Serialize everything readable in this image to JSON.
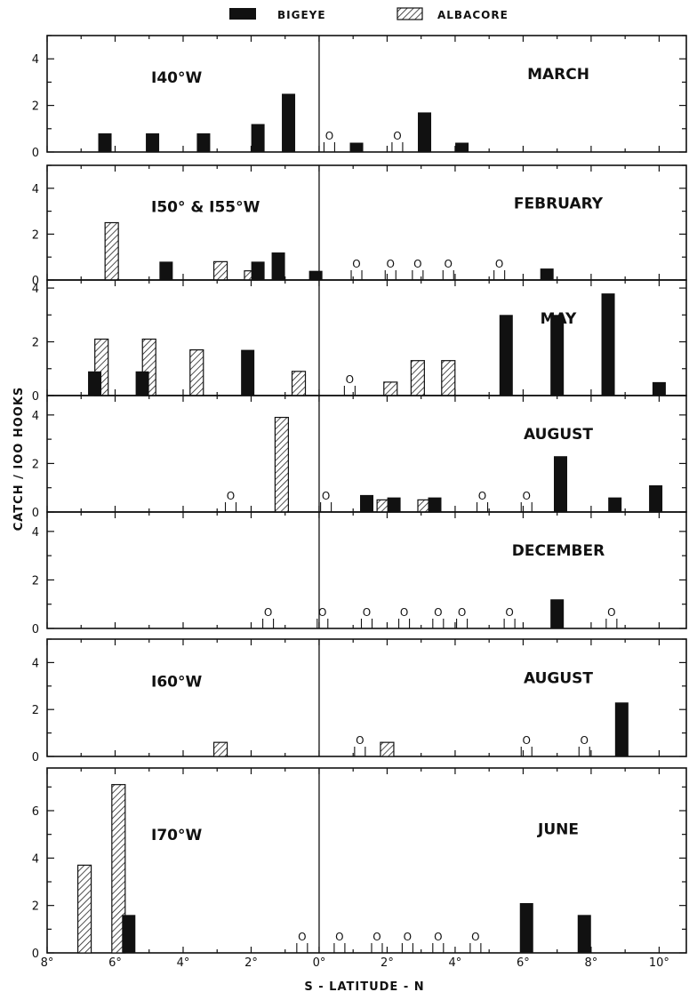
{
  "legend": [
    {
      "name": "BIGEYE",
      "style": "solid"
    },
    {
      "name": "ALBACORE",
      "style": "hatched"
    }
  ],
  "colors": {
    "bigeye": "#111111",
    "albacore_hatch": "#222222",
    "axes": "#111111"
  },
  "chart_data": {
    "type": "bar",
    "xlabel": "S - LATITUDE - N",
    "ylabel": "CATCH / IOO HOOKS",
    "xlim": [
      -8,
      10.8
    ],
    "x_ticks": [
      -8,
      -6,
      -4,
      -2,
      0,
      2,
      4,
      6,
      8,
      10
    ],
    "x_tick_labels": [
      "8°",
      "6°",
      "4°",
      "2°",
      "0°",
      "2°",
      "4°",
      "6°",
      "8°",
      "10°"
    ],
    "zero_catch_marker": "O",
    "panels": [
      {
        "longitude_label": "I40°W",
        "month_label": "MARCH",
        "ylim": [
          0,
          5
        ],
        "y_ticks": [
          0,
          2,
          4
        ],
        "y_tick_labels": [
          "0",
          "2",
          "4"
        ],
        "bigeye": [
          {
            "x": -6.3,
            "y": 0.8
          },
          {
            "x": -4.9,
            "y": 0.8
          },
          {
            "x": -3.4,
            "y": 0.8
          },
          {
            "x": -1.8,
            "y": 1.2
          },
          {
            "x": -0.9,
            "y": 2.5
          },
          {
            "x": 1.1,
            "y": 0.4
          },
          {
            "x": 3.1,
            "y": 1.7
          },
          {
            "x": 4.2,
            "y": 0.4
          }
        ],
        "albacore": [],
        "zero_catch": [
          {
            "x": 0.3
          },
          {
            "x": 2.3
          }
        ]
      },
      {
        "longitude_label": "I50° & I55°W",
        "month_label": "FEBRUARY",
        "ylim": [
          0,
          5
        ],
        "y_ticks": [
          0,
          2,
          4
        ],
        "y_tick_labels": [
          "0",
          "2",
          "4"
        ],
        "bigeye": [
          {
            "x": -4.5,
            "y": 0.8
          },
          {
            "x": -1.8,
            "y": 0.8
          },
          {
            "x": -1.2,
            "y": 1.2
          },
          {
            "x": -0.1,
            "y": 0.4
          },
          {
            "x": 6.7,
            "y": 0.5
          }
        ],
        "albacore": [
          {
            "x": -6.1,
            "y": 2.5
          },
          {
            "x": -2.9,
            "y": 0.8
          },
          {
            "x": -2.0,
            "y": 0.4
          }
        ],
        "zero_catch": [
          {
            "x": 1.1
          },
          {
            "x": 2.1
          },
          {
            "x": 2.9
          },
          {
            "x": 3.8
          },
          {
            "x": 5.3
          }
        ]
      },
      {
        "longitude_label": "",
        "month_label": "MAY",
        "ylim": [
          0,
          4.3
        ],
        "y_ticks": [
          0,
          2,
          4
        ],
        "y_tick_labels": [
          "0",
          "2",
          "4"
        ],
        "bigeye": [
          {
            "x": -6.6,
            "y": 0.9
          },
          {
            "x": -5.2,
            "y": 0.9
          },
          {
            "x": -2.1,
            "y": 1.7
          },
          {
            "x": 5.5,
            "y": 3.0
          },
          {
            "x": 7.0,
            "y": 3.0
          },
          {
            "x": 8.5,
            "y": 3.8
          },
          {
            "x": 10.0,
            "y": 0.5
          }
        ],
        "albacore": [
          {
            "x": -6.4,
            "y": 2.1
          },
          {
            "x": -5.0,
            "y": 2.1
          },
          {
            "x": -3.6,
            "y": 1.7
          },
          {
            "x": -0.6,
            "y": 0.9
          },
          {
            "x": 2.1,
            "y": 0.5
          },
          {
            "x": 2.9,
            "y": 1.3
          },
          {
            "x": 3.8,
            "y": 1.3
          }
        ],
        "zero_catch": [
          {
            "x": 0.9
          }
        ]
      },
      {
        "longitude_label": "",
        "month_label": "AUGUST",
        "ylim": [
          0,
          4.8
        ],
        "y_ticks": [
          0,
          2,
          4
        ],
        "y_tick_labels": [
          "0",
          "2",
          "4"
        ],
        "bigeye": [
          {
            "x": 1.4,
            "y": 0.7
          },
          {
            "x": 2.2,
            "y": 0.6
          },
          {
            "x": 3.4,
            "y": 0.6
          },
          {
            "x": 7.1,
            "y": 2.3
          },
          {
            "x": 8.7,
            "y": 0.6
          },
          {
            "x": 9.9,
            "y": 1.1
          }
        ],
        "albacore": [
          {
            "x": -1.1,
            "y": 3.9
          },
          {
            "x": 1.9,
            "y": 0.5
          },
          {
            "x": 3.1,
            "y": 0.5
          }
        ],
        "zero_catch": [
          {
            "x": -2.6
          },
          {
            "x": 0.2
          },
          {
            "x": 4.8
          },
          {
            "x": 6.1
          }
        ]
      },
      {
        "longitude_label": "",
        "month_label": "DECEMBER",
        "ylim": [
          0,
          4.8
        ],
        "y_ticks": [
          0,
          2,
          4
        ],
        "y_tick_labels": [
          "0",
          "2",
          "4"
        ],
        "bigeye": [
          {
            "x": 7.0,
            "y": 1.2
          }
        ],
        "albacore": [],
        "zero_catch": [
          {
            "x": -1.5
          },
          {
            "x": 0.1
          },
          {
            "x": 1.4
          },
          {
            "x": 2.5
          },
          {
            "x": 3.5
          },
          {
            "x": 4.2
          },
          {
            "x": 5.6
          },
          {
            "x": 8.6
          }
        ]
      },
      {
        "longitude_label": "I60°W",
        "month_label": "AUGUST",
        "ylim": [
          0,
          5
        ],
        "y_ticks": [
          0,
          2,
          4
        ],
        "y_tick_labels": [
          "0",
          "2",
          "4"
        ],
        "bigeye": [
          {
            "x": 8.9,
            "y": 2.3
          }
        ],
        "albacore": [
          {
            "x": -2.9,
            "y": 0.6
          },
          {
            "x": 2.0,
            "y": 0.6
          }
        ],
        "zero_catch": [
          {
            "x": 1.2
          },
          {
            "x": 6.1
          },
          {
            "x": 7.8
          }
        ]
      },
      {
        "longitude_label": "I70°W",
        "month_label": "JUNE",
        "ylim": [
          0,
          7.8
        ],
        "y_ticks": [
          0,
          2,
          4,
          6
        ],
        "y_tick_labels": [
          "0",
          "2",
          "4",
          "6"
        ],
        "bigeye": [
          {
            "x": -5.6,
            "y": 1.6
          },
          {
            "x": 6.1,
            "y": 2.1
          },
          {
            "x": 7.8,
            "y": 1.6
          }
        ],
        "albacore": [
          {
            "x": -6.9,
            "y": 3.7
          },
          {
            "x": -5.9,
            "y": 7.1
          }
        ],
        "zero_catch": [
          {
            "x": -0.5
          },
          {
            "x": 0.6
          },
          {
            "x": 1.7
          },
          {
            "x": 2.6
          },
          {
            "x": 3.5
          },
          {
            "x": 4.6
          }
        ]
      }
    ]
  }
}
